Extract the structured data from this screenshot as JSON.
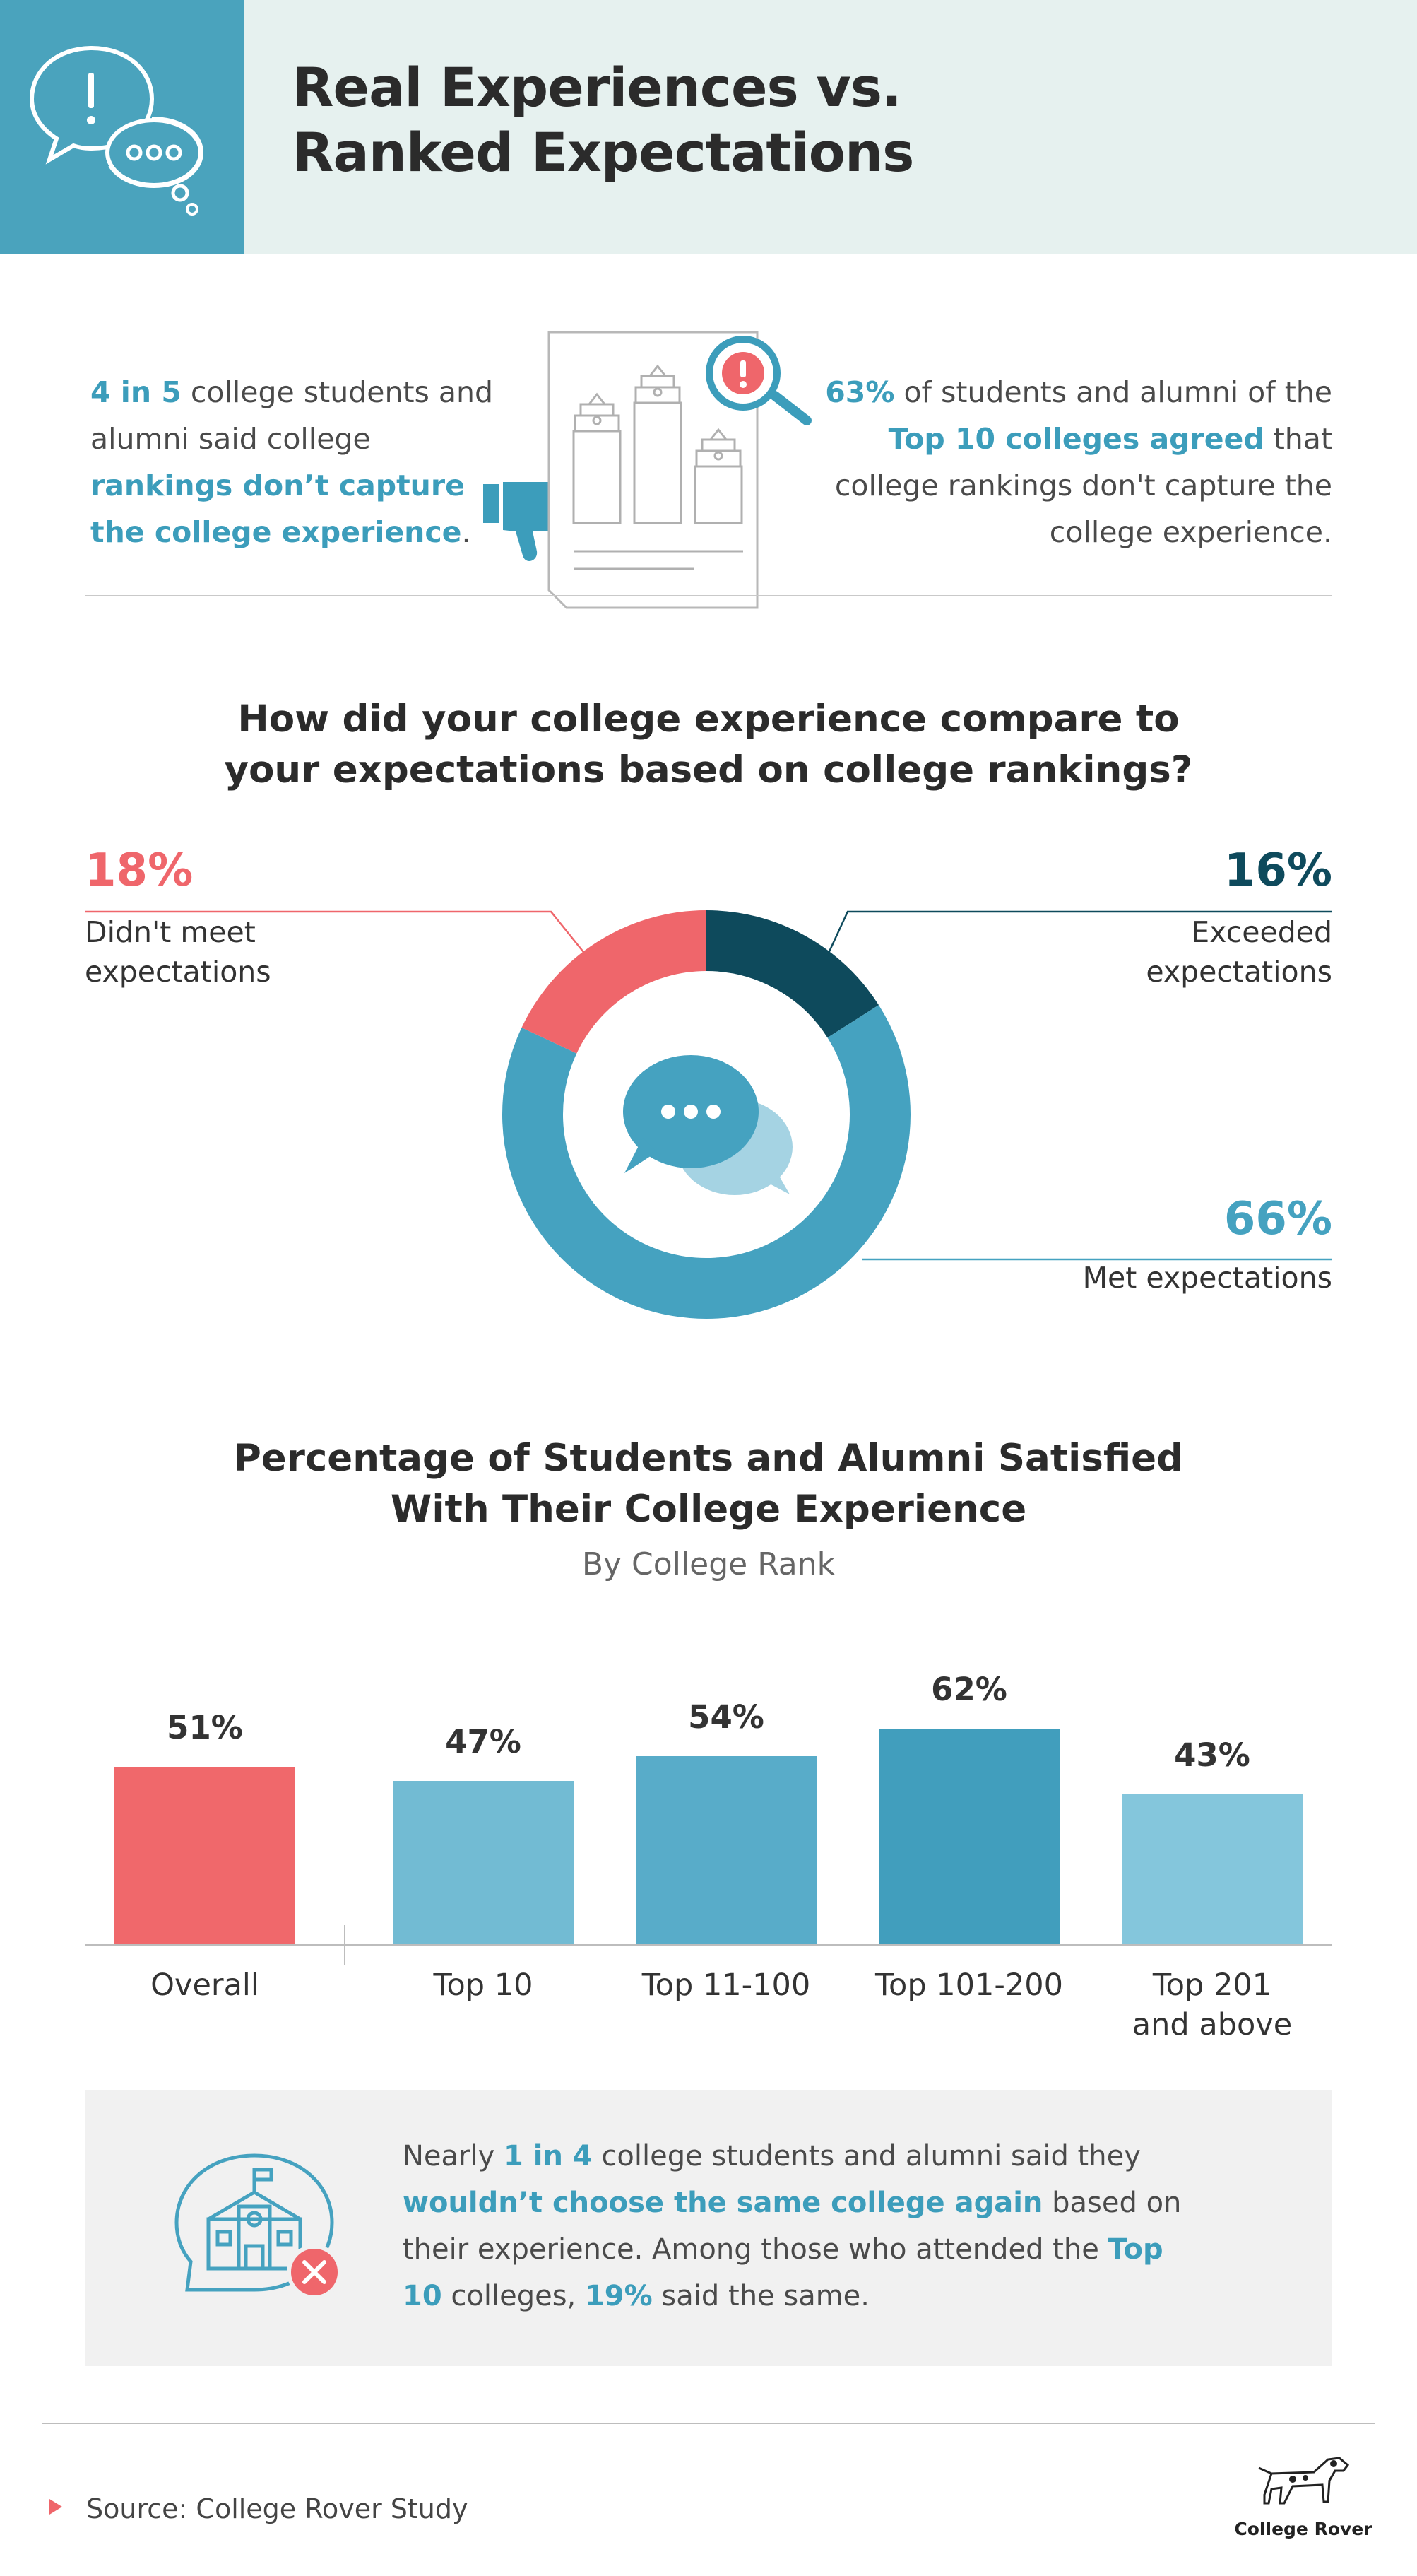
{
  "header": {
    "title_line1": "Real Experiences vs.",
    "title_line2": "Ranked Expectations"
  },
  "stats": {
    "left": {
      "p1": "4 in 5",
      "p2": " college students and alumni said college ",
      "p3": "rankings don’t capture the college experience",
      "p4": "."
    },
    "right": {
      "p1": "63%",
      "p2": " of students and alumni of the ",
      "p3": "Top 10 colleges agreed",
      "p4": " that college rankings don't capture the college experience."
    }
  },
  "donut": {
    "question_line1": "How did your college experience compare to",
    "question_line2": "your expectations based on college rankings?",
    "segments": [
      {
        "label_line1": "Exceeded",
        "label_line2": "expectations",
        "pct_text": "16%",
        "value": 16,
        "color": "#0e4a5c"
      },
      {
        "label_line1": "Met expectations",
        "label_line2": "",
        "pct_text": "66%",
        "value": 66,
        "color": "#45a2c0"
      },
      {
        "label_line1": "Didn't meet",
        "label_line2": "expectations",
        "pct_text": "18%",
        "value": 18,
        "color": "#ef666b"
      }
    ]
  },
  "chart_data": {
    "type": "bar",
    "title": "Percentage of Students and Alumni Satisfied With Their College Experience",
    "title_line1": "Percentage of Students and Alumni Satisfied",
    "title_line2": "With Their College Experience",
    "subtitle": "By College Rank",
    "categories": [
      "Overall",
      "Top 10",
      "Top 11-100",
      "Top 101-200",
      "Top 201 and above"
    ],
    "category_lines": [
      [
        "Overall",
        ""
      ],
      [
        "Top 10",
        ""
      ],
      [
        "Top 11-100",
        ""
      ],
      [
        "Top 101-200",
        ""
      ],
      [
        "Top 201",
        "and above"
      ]
    ],
    "values": [
      51,
      47,
      54,
      62,
      43
    ],
    "value_labels": [
      "51%",
      "47%",
      "54%",
      "62%",
      "43%"
    ],
    "colors": [
      "#f0686b",
      "#72bbd3",
      "#58acc9",
      "#419ebd",
      "#84c6dc"
    ],
    "ylim": [
      0,
      62
    ],
    "xlabel": "",
    "ylabel": ""
  },
  "callout": {
    "t1": "Nearly ",
    "t2": "1 in 4",
    "t3": " college students and alumni said they ",
    "t4": "wouldn’t choose the same college again",
    "t5": " based on their experience. Among those who attended the ",
    "t6": "Top 10",
    "t7": " colleges, ",
    "t8": "19%",
    "t9": " said the same."
  },
  "footer": {
    "source_label": "Source:",
    "source_text": " College Rover Study",
    "brand": "College Rover"
  },
  "icons": {
    "header": "chat-bubbles-alert-icon",
    "thumbs": "thumbs-down-icon",
    "document": "ranking-document-icon",
    "magnifier": "magnifier-alert-icon",
    "donut_center": "chat-bubbles-icon",
    "school": "school-x-icon",
    "source_marker": "triangle-marker-icon",
    "logo": "dog-logo-icon"
  }
}
